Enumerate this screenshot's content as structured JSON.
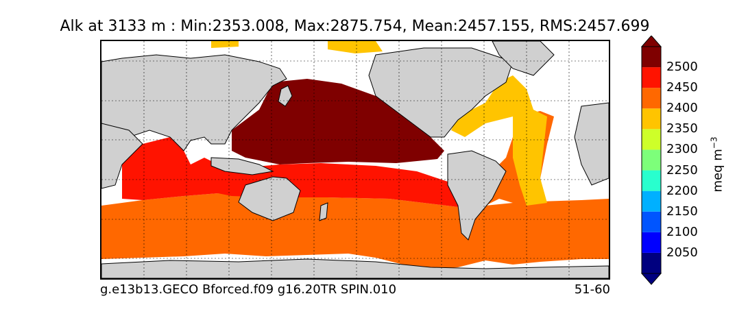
{
  "title": "Alk at 3133 m : Min:2353.008, Max:2875.754, Mean:2457.155, RMS:2457.699",
  "footer": {
    "left": "g.e13b13.GECO Bforced.f09 g16.20TR SPIN.010",
    "right": "51-60"
  },
  "colorbar": {
    "unit_main": "meq m",
    "unit_exp": "−3",
    "tick_labels": [
      "2500",
      "2450",
      "2400",
      "2350",
      "2300",
      "2250",
      "2200",
      "2150",
      "2100",
      "2050"
    ],
    "levels": [
      2000,
      2050,
      2100,
      2150,
      2200,
      2250,
      2300,
      2350,
      2400,
      2450,
      2500,
      2550
    ],
    "colors": [
      "#00007f",
      "#0000ff",
      "#0055ff",
      "#00b0ff",
      "#29ffce",
      "#7dff7a",
      "#ceff29",
      "#ffc400",
      "#ff6800",
      "#ff1300",
      "#7f0000"
    ],
    "extend": "both"
  },
  "colors": {
    "land": "#d0d0d0",
    "coast": "#000000",
    "ocean_unfilled": "#ffffff",
    "fill_2500": "#7f0000",
    "fill_2450": "#ff1300",
    "fill_2400": "#ff6800",
    "fill_2350": "#ffc400"
  }
}
